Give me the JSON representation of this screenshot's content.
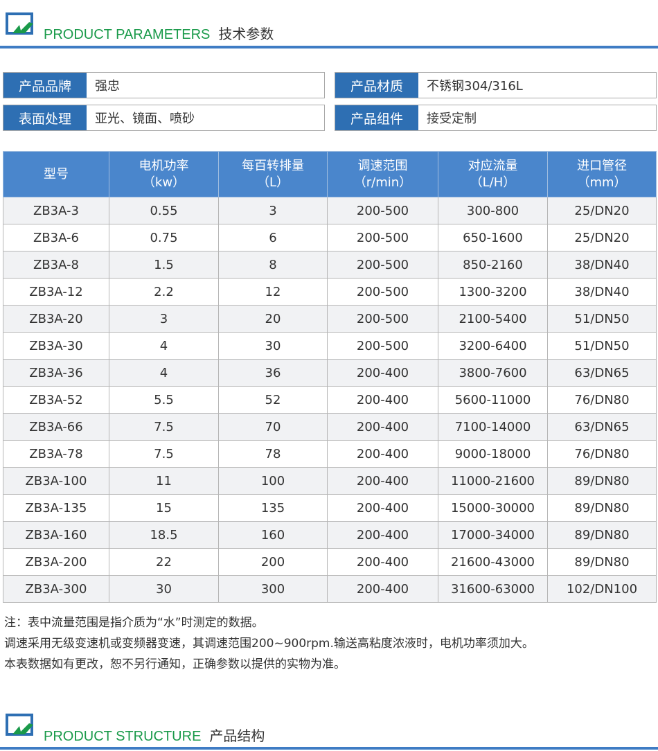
{
  "section1": {
    "en": "PRODUCT PARAMETERS",
    "cn": "技术参数"
  },
  "info": [
    {
      "label": "产品品牌",
      "value": "强忠"
    },
    {
      "label": "产品材质",
      "value": "不锈钢304/316L"
    },
    {
      "label": "表面处理",
      "value": "亚光、镜面、喷砂"
    },
    {
      "label": "产品组件",
      "value": "接受定制"
    }
  ],
  "table": {
    "headers": [
      {
        "l1": "型号",
        "l2": ""
      },
      {
        "l1": "电机功率",
        "l2": "（kw）"
      },
      {
        "l1": "每百转排量",
        "l2": "（L）"
      },
      {
        "l1": "调速范围",
        "l2": "（r/min）"
      },
      {
        "l1": "对应流量",
        "l2": "（L/H）"
      },
      {
        "l1": "进口管径",
        "l2": "（mm）"
      }
    ],
    "rows": [
      [
        "ZB3A-3",
        "0.55",
        "3",
        "200-500",
        "300-800",
        "25/DN20"
      ],
      [
        "ZB3A-6",
        "0.75",
        "6",
        "200-500",
        "650-1600",
        "25/DN20"
      ],
      [
        "ZB3A-8",
        "1.5",
        "8",
        "200-500",
        "850-2160",
        "38/DN40"
      ],
      [
        "ZB3A-12",
        "2.2",
        "12",
        "200-500",
        "1300-3200",
        "38/DN40"
      ],
      [
        "ZB3A-20",
        "3",
        "20",
        "200-500",
        "2100-5400",
        "51/DN50"
      ],
      [
        "ZB3A-30",
        "4",
        "30",
        "200-500",
        "3200-6400",
        "51/DN50"
      ],
      [
        "ZB3A-36",
        "4",
        "36",
        "200-400",
        "3800-7600",
        "63/DN65"
      ],
      [
        "ZB3A-52",
        "5.5",
        "52",
        "200-400",
        "5600-11000",
        "76/DN80"
      ],
      [
        "ZB3A-66",
        "7.5",
        "70",
        "200-400",
        "7100-14000",
        "63/DN65"
      ],
      [
        "ZB3A-78",
        "7.5",
        "78",
        "200-400",
        "9000-18000",
        "76/DN80"
      ],
      [
        "ZB3A-100",
        "11",
        "100",
        "200-400",
        "11000-21600",
        "89/DN80"
      ],
      [
        "ZB3A-135",
        "15",
        "135",
        "200-400",
        "15000-30000",
        "89/DN80"
      ],
      [
        "ZB3A-160",
        "18.5",
        "160",
        "200-400",
        "17000-34000",
        "89/DN80"
      ],
      [
        "ZB3A-200",
        "22",
        "200",
        "200-400",
        "21600-43000",
        "89/DN80"
      ],
      [
        "ZB3A-300",
        "30",
        "300",
        "200-400",
        "31600-63000",
        "102/DN100"
      ]
    ]
  },
  "notes": [
    "注：表中流量范围是指介质为“水”时测定的数据。",
    "调速采用无级变速机或变频器变速，其调速范围200~900rpm.输送高粘度浓液时，电机功率须加大。",
    "本表数据如有更改，恕不另行通知，正确参数以提供的实物为准。"
  ],
  "section2": {
    "en": "PRODUCT STRUCTURE",
    "cn": "产品结构"
  },
  "colors": {
    "accent": "#2e6fb3",
    "header": "#4a86cc",
    "green": "#1a9a4a"
  }
}
